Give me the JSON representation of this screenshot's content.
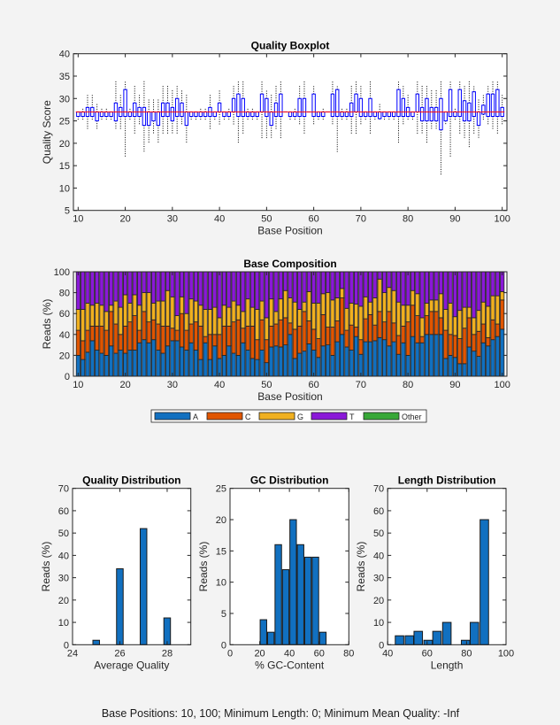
{
  "footer": "Base Positions: 10, 100;   Minimum Length: 0;   Minimum Mean Quality: -Inf",
  "colors": {
    "A": "#1170c0",
    "C": "#e05500",
    "G": "#f0b020",
    "T": "#8a18d8",
    "Other": "#38a838",
    "box": "#0000ff",
    "median": "#ff0000",
    "hist": "#1170c0"
  },
  "chart_data": [
    {
      "type": "boxplot",
      "title": "Quality Boxplot",
      "xlabel": "Base Position",
      "ylabel": "Quality Score",
      "xlim": [
        9,
        101
      ],
      "ylim": [
        5,
        40
      ],
      "xticks": [
        "10",
        "20",
        "30",
        "40",
        "50",
        "60",
        "70",
        "80",
        "90",
        "100"
      ],
      "yticks": [
        "5",
        "10",
        "15",
        "20",
        "25",
        "30",
        "35",
        "40"
      ],
      "x": [
        10,
        11,
        12,
        13,
        14,
        15,
        16,
        17,
        18,
        19,
        20,
        21,
        22,
        23,
        24,
        25,
        26,
        27,
        28,
        29,
        30,
        31,
        32,
        33,
        34,
        35,
        36,
        37,
        38,
        39,
        40,
        41,
        42,
        43,
        44,
        45,
        46,
        47,
        48,
        49,
        50,
        51,
        52,
        53,
        54,
        55,
        56,
        57,
        58,
        59,
        60,
        61,
        62,
        63,
        64,
        65,
        66,
        67,
        68,
        69,
        70,
        71,
        72,
        73,
        74,
        75,
        76,
        77,
        78,
        79,
        80,
        81,
        82,
        83,
        84,
        85,
        86,
        87,
        88,
        89,
        90,
        91,
        92,
        93,
        94,
        95,
        96,
        97,
        98,
        99,
        100
      ],
      "median": [
        27,
        27,
        27,
        27,
        27,
        27,
        27,
        27,
        27,
        27,
        27,
        27,
        27,
        27,
        27,
        27,
        27,
        27,
        27,
        27,
        27,
        27,
        27,
        27,
        27,
        27,
        27,
        27,
        27,
        27,
        27,
        27,
        27,
        27,
        27,
        27,
        27,
        27,
        27,
        27,
        27,
        27,
        27,
        27,
        27,
        27,
        27,
        27,
        27,
        27,
        27,
        27,
        27,
        27,
        27,
        27,
        27,
        27,
        27,
        27,
        27,
        27,
        27,
        27,
        27,
        27,
        27,
        27,
        27,
        27,
        27,
        27,
        27,
        27,
        27,
        27,
        27,
        27,
        27,
        27,
        27,
        27,
        27,
        27,
        27,
        27,
        27,
        27,
        27,
        27,
        27
      ],
      "q1": [
        26,
        26,
        26,
        26,
        25,
        26,
        26,
        26,
        25,
        26,
        26,
        26,
        26,
        26,
        24,
        24,
        25,
        24,
        26,
        26,
        25,
        26,
        26,
        24,
        26,
        26,
        26,
        26,
        26,
        26,
        27,
        26,
        26,
        27,
        26,
        26,
        26,
        26,
        26,
        27,
        26,
        24,
        26,
        26,
        27,
        26,
        26,
        26,
        26,
        27,
        26,
        26,
        26,
        27,
        26,
        26,
        26,
        26,
        26,
        27,
        26,
        26,
        26,
        26,
        25.5,
        26,
        26,
        26,
        26,
        26,
        26,
        26,
        27,
        25,
        25,
        25,
        25,
        23,
        25,
        26,
        26,
        26,
        25,
        25,
        26,
        24,
        26.5,
        26,
        26,
        26,
        26
      ],
      "q3": [
        27,
        27,
        28,
        28,
        27,
        27,
        27,
        27,
        29,
        28,
        32,
        27,
        29,
        28,
        28,
        27,
        27,
        27,
        29,
        29,
        28,
        30,
        29,
        27,
        27,
        27,
        27,
        27,
        28,
        27,
        29,
        27,
        27,
        30,
        31,
        30,
        27,
        27,
        27,
        31,
        30,
        27,
        29,
        31,
        27,
        27,
        27,
        30,
        30,
        27,
        31,
        27,
        27,
        27,
        31,
        32,
        27,
        27,
        29,
        31,
        30,
        27,
        30,
        27,
        27,
        27,
        27,
        27,
        32,
        30,
        28,
        27,
        31,
        28,
        30,
        28,
        28,
        30,
        27,
        32,
        27,
        32,
        29.5,
        29,
        31.5,
        27,
        28.5,
        31,
        31,
        32,
        28
      ],
      "whisker_low": [
        25,
        25,
        23,
        25,
        23,
        25,
        25,
        25,
        23,
        23,
        17,
        25,
        22,
        24,
        18,
        20,
        22,
        20,
        22,
        22,
        22,
        22,
        24,
        20,
        25,
        25,
        25,
        25,
        23,
        25,
        24,
        25,
        25,
        24,
        20,
        22,
        25,
        25,
        25,
        21,
        21,
        21,
        23,
        21,
        27,
        25,
        25,
        24,
        22,
        27,
        24,
        25,
        25,
        27,
        24,
        18,
        25,
        25,
        22,
        22,
        24,
        25,
        22,
        25,
        25,
        25,
        25,
        25,
        20,
        24,
        25,
        25,
        22,
        22,
        20,
        23,
        23,
        13,
        24,
        17,
        25,
        22,
        21,
        19,
        22,
        21,
        25,
        24,
        23,
        22,
        24
      ],
      "whisker_high": [
        27,
        28,
        31,
        31,
        29,
        28,
        28,
        27,
        34,
        31,
        34,
        28,
        33,
        31,
        34,
        30,
        30,
        30,
        33,
        33,
        32,
        33,
        32,
        31,
        27,
        27,
        28,
        28,
        31,
        27,
        32,
        27,
        28,
        33,
        34,
        34,
        28,
        28,
        27,
        34,
        32,
        31,
        33,
        34,
        27,
        27,
        28,
        33,
        34,
        27,
        33,
        27,
        28,
        27,
        34,
        33,
        28,
        28,
        33,
        34,
        33,
        27,
        34,
        27,
        29,
        27,
        27,
        27,
        34,
        33,
        31,
        27,
        34,
        33,
        33,
        32,
        32,
        34,
        27,
        34,
        28,
        34,
        33,
        34,
        33,
        30,
        31,
        33,
        34,
        34,
        31
      ]
    },
    {
      "type": "bar",
      "stacked": true,
      "title": "Base Composition",
      "xlabel": "Base Position",
      "ylabel": "Reads (%)",
      "xlim": [
        9,
        101
      ],
      "ylim": [
        0,
        100
      ],
      "xticks": [
        "10",
        "20",
        "30",
        "40",
        "50",
        "60",
        "70",
        "80",
        "90",
        "100"
      ],
      "yticks": [
        "0",
        "20",
        "40",
        "60",
        "80",
        "100"
      ],
      "legend_position": "bottom",
      "x": [
        10,
        11,
        12,
        13,
        14,
        15,
        16,
        17,
        18,
        19,
        20,
        21,
        22,
        23,
        24,
        25,
        26,
        27,
        28,
        29,
        30,
        31,
        32,
        33,
        34,
        35,
        36,
        37,
        38,
        39,
        40,
        41,
        42,
        43,
        44,
        45,
        46,
        47,
        48,
        49,
        50,
        51,
        52,
        53,
        54,
        55,
        56,
        57,
        58,
        59,
        60,
        61,
        62,
        63,
        64,
        65,
        66,
        67,
        68,
        69,
        70,
        71,
        72,
        73,
        74,
        75,
        76,
        77,
        78,
        79,
        80,
        81,
        82,
        83,
        84,
        85,
        86,
        87,
        88,
        89,
        90,
        91,
        92,
        93,
        94,
        95,
        96,
        97,
        98,
        99,
        100
      ],
      "series": [
        {
          "name": "A",
          "values": [
            20,
            16,
            23,
            34,
            25,
            22,
            20,
            29,
            22,
            25,
            22,
            25,
            25,
            32,
            35,
            32,
            35,
            25,
            22,
            29,
            34,
            34,
            28,
            25,
            32,
            25,
            16,
            32,
            16,
            29,
            17,
            20,
            29,
            22,
            20,
            32,
            25,
            17,
            16,
            25,
            13,
            28,
            29,
            28,
            30,
            40,
            17,
            22,
            24,
            31,
            25,
            18,
            29,
            30,
            20,
            33,
            40,
            28,
            25,
            38,
            21,
            33,
            33,
            34,
            37,
            35,
            29,
            33,
            21,
            32,
            20,
            38,
            32,
            32,
            40,
            40,
            40,
            40,
            17,
            20,
            18,
            12,
            12,
            28,
            24,
            19,
            32,
            29,
            35,
            38,
            45
          ]
        },
        {
          "name": "C",
          "values": [
            24,
            18,
            21,
            14,
            23,
            26,
            24,
            33,
            28,
            15,
            26,
            27,
            33,
            12,
            27,
            20,
            19,
            25,
            26,
            19,
            12,
            10,
            32,
            19,
            18,
            27,
            32,
            6,
            24,
            11,
            23,
            28,
            19,
            30,
            34,
            14,
            23,
            31,
            19,
            29,
            22,
            20,
            21,
            26,
            26,
            11,
            28,
            26,
            38,
            22,
            20,
            18,
            30,
            17,
            27,
            20,
            35,
            16,
            24,
            9,
            14,
            22,
            26,
            15,
            25,
            17,
            33,
            18,
            18,
            16,
            32,
            30,
            26,
            6,
            18,
            22,
            22,
            16,
            27,
            20,
            21,
            24,
            34,
            28,
            16,
            24,
            18,
            8,
            19,
            12,
            28
          ]
        },
        {
          "name": "G",
          "values": [
            20,
            30,
            26,
            20,
            22,
            20,
            18,
            6,
            22,
            26,
            30,
            18,
            20,
            24,
            18,
            28,
            16,
            22,
            24,
            34,
            30,
            14,
            16,
            16,
            24,
            20,
            20,
            26,
            24,
            26,
            16,
            20,
            18,
            20,
            14,
            16,
            26,
            18,
            29,
            18,
            21,
            26,
            12,
            20,
            26,
            24,
            26,
            16,
            9,
            28,
            25,
            34,
            20,
            33,
            26,
            22,
            9,
            21,
            21,
            22,
            32,
            21,
            12,
            26,
            31,
            28,
            23,
            31,
            32,
            20,
            16,
            14,
            21,
            18,
            12,
            11,
            11,
            23,
            20,
            30,
            18,
            27,
            20,
            10,
            16,
            20,
            21,
            30,
            23,
            27,
            8
          ]
        },
        {
          "name": "T",
          "values": [
            36,
            36,
            30,
            32,
            30,
            32,
            38,
            32,
            28,
            34,
            22,
            30,
            22,
            32,
            20,
            20,
            30,
            28,
            28,
            18,
            24,
            42,
            24,
            40,
            26,
            28,
            32,
            36,
            36,
            34,
            44,
            32,
            34,
            28,
            32,
            38,
            26,
            34,
            36,
            28,
            44,
            26,
            38,
            26,
            18,
            25,
            29,
            36,
            29,
            19,
            30,
            30,
            21,
            20,
            27,
            25,
            16,
            35,
            30,
            31,
            33,
            24,
            29,
            25,
            7,
            20,
            15,
            18,
            29,
            32,
            32,
            18,
            21,
            44,
            30,
            27,
            27,
            21,
            36,
            30,
            43,
            37,
            34,
            34,
            44,
            37,
            29,
            33,
            23,
            23,
            19
          ]
        },
        {
          "name": "Other",
          "values": [
            0,
            0,
            0,
            0,
            0,
            0,
            0,
            0,
            0,
            0,
            0,
            0,
            0,
            0,
            0,
            0,
            0,
            0,
            0,
            0,
            0,
            0,
            0,
            0,
            0,
            0,
            0,
            0,
            0,
            0,
            0,
            0,
            0,
            0,
            0,
            0,
            0,
            0,
            0,
            0,
            0,
            0,
            0,
            0,
            0,
            0,
            0,
            0,
            0,
            0,
            0,
            0,
            0,
            0,
            0,
            0,
            0,
            0,
            0,
            0,
            0,
            0,
            0,
            0,
            0,
            0,
            0,
            0,
            0,
            0,
            0,
            0,
            0,
            0,
            0,
            0,
            0,
            0,
            0,
            0,
            0,
            0,
            0,
            0,
            0,
            0,
            0,
            0,
            0,
            0,
            0
          ]
        }
      ]
    },
    {
      "type": "bar",
      "title": "Quality Distribution",
      "xlabel": "Average Quality",
      "ylabel": "Reads (%)",
      "xlim": [
        24,
        29
      ],
      "ylim": [
        0,
        70
      ],
      "xticks": [
        "24",
        "26",
        "28"
      ],
      "yticks": [
        "0",
        "10",
        "20",
        "30",
        "40",
        "50",
        "60",
        "70"
      ],
      "bin_width": 0.28,
      "x": [
        25,
        26,
        27,
        28
      ],
      "values": [
        2,
        34,
        52,
        12
      ]
    },
    {
      "type": "bar",
      "title": "GC Distribution",
      "xlabel": "% GC-Content",
      "ylabel": "Reads (%)",
      "xlim": [
        0,
        80
      ],
      "ylim": [
        0,
        25
      ],
      "xticks": [
        "0",
        "20",
        "40",
        "60",
        "80"
      ],
      "yticks": [
        "0",
        "5",
        "10",
        "15",
        "20",
        "25"
      ],
      "bin_width": 4.4,
      "x": [
        22.5,
        27.5,
        32.5,
        37.5,
        42.5,
        47.5,
        52.5,
        57.5,
        62.5
      ],
      "values": [
        4,
        2,
        16,
        12,
        20,
        16,
        14,
        14,
        2
      ]
    },
    {
      "type": "bar",
      "title": "Length Distribution",
      "xlabel": "Length",
      "ylabel": "Reads (%)",
      "xlim": [
        40,
        100
      ],
      "ylim": [
        0,
        70
      ],
      "xticks": [
        "40",
        "60",
        "80",
        "100"
      ],
      "yticks": [
        "0",
        "10",
        "20",
        "30",
        "40",
        "50",
        "60",
        "70"
      ],
      "bin_width": 4.3,
      "x": [
        46,
        51,
        55.5,
        60.5,
        65,
        70,
        79.5,
        84,
        89
      ],
      "values": [
        4,
        4,
        6,
        2,
        6,
        10,
        2,
        10,
        56
      ]
    }
  ]
}
